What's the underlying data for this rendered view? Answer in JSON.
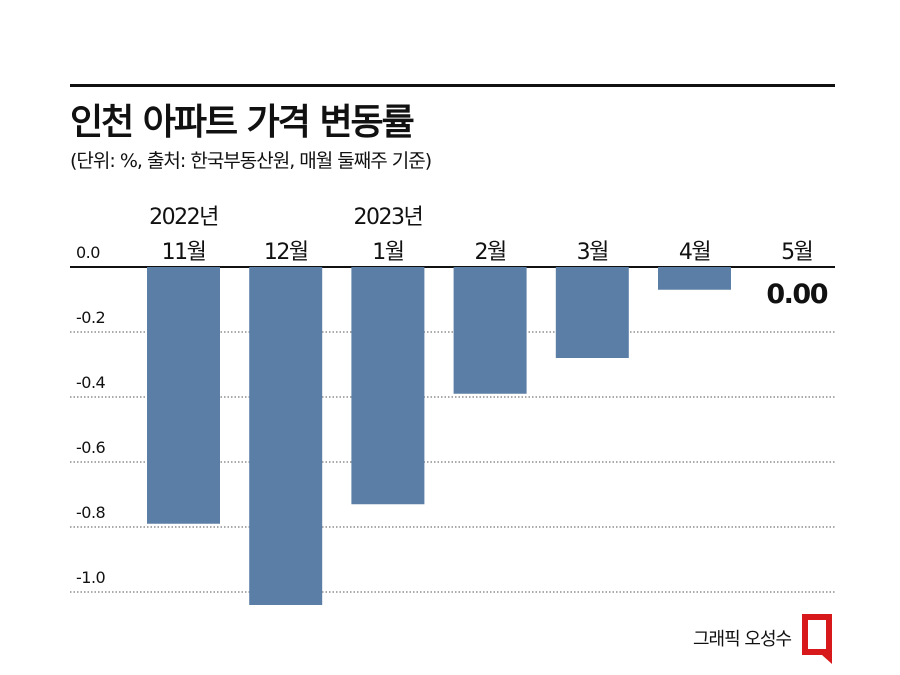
{
  "title": "인천 아파트 가격 변동률",
  "subtitle": "(단위: %, 출처: 한국부동산원, 매월 둘째주 기준)",
  "credit": "그래픽 오성수",
  "colors": {
    "bar": "#5b7ea6",
    "grid": "#555555",
    "text": "#111111",
    "logo": "#d7191c"
  },
  "chart_data": {
    "type": "bar",
    "title": "인천 아파트 가격 변동률",
    "categories": [
      "11월",
      "12월",
      "1월",
      "2월",
      "3월",
      "4월",
      "5월"
    ],
    "year_labels": [
      "2022년",
      "",
      "2023년",
      "",
      "",
      "",
      ""
    ],
    "values": [
      -0.79,
      -1.04,
      -0.73,
      -0.39,
      -0.28,
      -0.07,
      0.0
    ],
    "value_labels": [
      "",
      "",
      "",
      "",
      "",
      "",
      "0.00"
    ],
    "yticks": [
      0.0,
      -0.2,
      -0.4,
      -0.6,
      -0.8,
      -1.0
    ],
    "ytick_labels": [
      "0.0",
      "-0.2",
      "-0.4",
      "-0.6",
      "-0.8",
      "-1.0"
    ],
    "ylim": [
      -1.05,
      0.0
    ],
    "xlabel": "",
    "ylabel": ""
  }
}
